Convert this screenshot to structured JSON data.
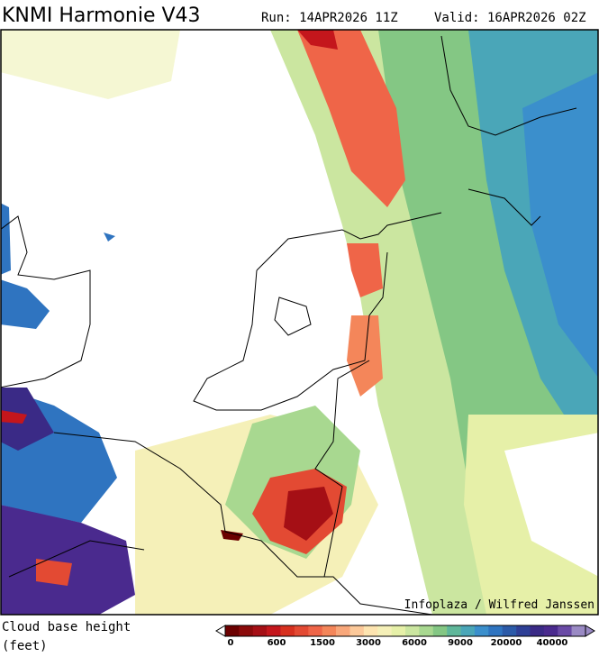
{
  "header": {
    "title": "KNMI Harmonie V43",
    "run": "Run: 14APR2026 11Z",
    "valid": "Valid: 16APR2026 02Z"
  },
  "map": {
    "credit": "Infoplaza / Wilfred Janssen"
  },
  "legend": {
    "label": [
      "Cloud base height",
      "(feet)"
    ],
    "ticks": [
      "0",
      "600",
      "1500",
      "3000",
      "6000",
      "9000",
      "20000",
      "40000"
    ],
    "colors": [
      "#6b0000",
      "#8b0a0a",
      "#a50f15",
      "#c4161c",
      "#d7301f",
      "#e34a33",
      "#ef6548",
      "#f4865a",
      "#f8a77a",
      "#fcc99a",
      "#fde4b0",
      "#f5f0b8",
      "#e6f0a8",
      "#cbe6a0",
      "#a8d890",
      "#84c784",
      "#5fb79a",
      "#4aa6b8",
      "#3b8fcc",
      "#2f74c0",
      "#2b5aa8",
      "#2e3f96",
      "#3a2a86",
      "#4a2a8e",
      "#6a4aa6",
      "#9a8ac4"
    ]
  }
}
